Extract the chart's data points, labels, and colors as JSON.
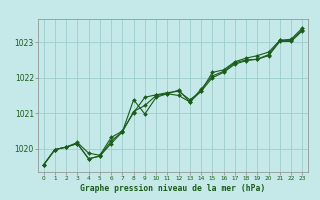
{
  "title": "Graphe pression niveau de la mer (hPa)",
  "xlabel_ticks": [
    "0",
    "1",
    "2",
    "3",
    "4",
    "5",
    "6",
    "7",
    "8",
    "9",
    "10",
    "11",
    "12",
    "13",
    "14",
    "15",
    "16",
    "17",
    "18",
    "19",
    "20",
    "21",
    "22",
    "23"
  ],
  "ylim": [
    1019.35,
    1023.65
  ],
  "xlim": [
    -0.5,
    23.5
  ],
  "yticks": [
    1020,
    1021,
    1022,
    1023
  ],
  "bg_color": "#c5e8e8",
  "grid_color": "#9ecece",
  "line_color": "#1a5c1a",
  "marker_color": "#1a5c1a",
  "series1": [
    [
      0,
      1019.55
    ],
    [
      1,
      1019.98
    ],
    [
      2,
      1020.05
    ],
    [
      3,
      1020.18
    ],
    [
      4,
      1019.88
    ],
    [
      5,
      1019.82
    ],
    [
      6,
      1020.32
    ],
    [
      7,
      1020.5
    ],
    [
      8,
      1021.02
    ],
    [
      9,
      1021.45
    ],
    [
      10,
      1021.52
    ],
    [
      11,
      1021.58
    ],
    [
      12,
      1021.62
    ],
    [
      13,
      1021.38
    ],
    [
      14,
      1021.62
    ],
    [
      15,
      1022.15
    ],
    [
      16,
      1022.22
    ],
    [
      17,
      1022.45
    ],
    [
      18,
      1022.55
    ],
    [
      19,
      1022.62
    ],
    [
      20,
      1022.72
    ],
    [
      21,
      1023.05
    ],
    [
      22,
      1023.08
    ],
    [
      23,
      1023.4
    ]
  ],
  "series2": [
    [
      0,
      1019.55
    ],
    [
      1,
      1019.98
    ],
    [
      2,
      1020.05
    ],
    [
      3,
      1020.15
    ],
    [
      4,
      1019.72
    ],
    [
      5,
      1019.8
    ],
    [
      6,
      1020.15
    ],
    [
      7,
      1020.48
    ],
    [
      8,
      1021.38
    ],
    [
      9,
      1020.98
    ],
    [
      10,
      1021.45
    ],
    [
      11,
      1021.55
    ],
    [
      12,
      1021.65
    ],
    [
      13,
      1021.32
    ],
    [
      14,
      1021.68
    ],
    [
      15,
      1022.05
    ],
    [
      16,
      1022.18
    ],
    [
      17,
      1022.42
    ],
    [
      18,
      1022.5
    ],
    [
      19,
      1022.52
    ],
    [
      20,
      1022.65
    ],
    [
      21,
      1023.05
    ],
    [
      22,
      1023.05
    ],
    [
      23,
      1023.35
    ]
  ],
  "series3": [
    [
      0,
      1019.55
    ],
    [
      1,
      1019.98
    ],
    [
      2,
      1020.05
    ],
    [
      3,
      1020.15
    ],
    [
      4,
      1019.72
    ],
    [
      5,
      1019.8
    ],
    [
      6,
      1020.22
    ],
    [
      7,
      1020.48
    ],
    [
      8,
      1021.05
    ],
    [
      9,
      1021.22
    ],
    [
      10,
      1021.5
    ],
    [
      11,
      1021.55
    ],
    [
      12,
      1021.5
    ],
    [
      13,
      1021.32
    ],
    [
      14,
      1021.62
    ],
    [
      15,
      1022.0
    ],
    [
      16,
      1022.15
    ],
    [
      17,
      1022.38
    ],
    [
      18,
      1022.48
    ],
    [
      19,
      1022.52
    ],
    [
      20,
      1022.62
    ],
    [
      21,
      1023.02
    ],
    [
      22,
      1023.02
    ],
    [
      23,
      1023.32
    ]
  ]
}
